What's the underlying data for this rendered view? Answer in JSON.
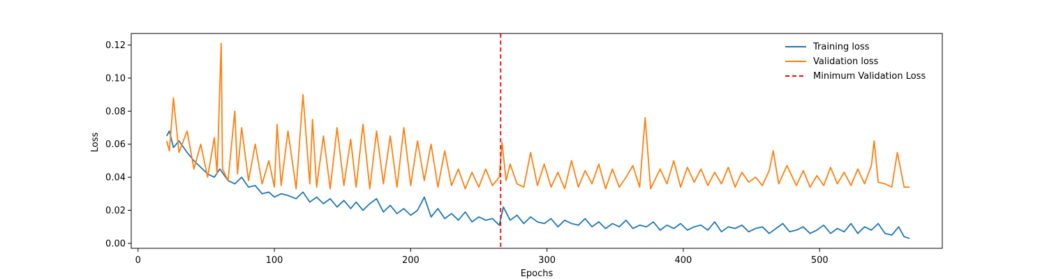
{
  "chart_data": {
    "type": "line",
    "title": "",
    "xlabel": "Epochs",
    "ylabel": "Loss",
    "xlim": [
      -5,
      590
    ],
    "ylim": [
      -0.003,
      0.127
    ],
    "x_ticks": [
      0,
      100,
      200,
      300,
      400,
      500
    ],
    "y_ticks": [
      0.0,
      0.02,
      0.04,
      0.06,
      0.08,
      0.1,
      0.12
    ],
    "x_tick_labels": [
      "0",
      "100",
      "200",
      "300",
      "400",
      "500"
    ],
    "y_tick_labels": [
      "0.00",
      "0.02",
      "0.04",
      "0.06",
      "0.08",
      "0.10",
      "0.12"
    ],
    "grid": false,
    "legend_position": "top-right",
    "legend": [
      "Training loss",
      "Validation loss",
      "Minimum Validation Loss"
    ],
    "series": [
      {
        "name": "Training loss",
        "color": "#1f77b4",
        "x": [
          21,
          23,
          26,
          30,
          36,
          41,
          46,
          51,
          56,
          60,
          66,
          71,
          76,
          81,
          86,
          91,
          96,
          100,
          105,
          110,
          116,
          121,
          126,
          131,
          136,
          141,
          146,
          151,
          156,
          160,
          165,
          170,
          175,
          180,
          185,
          190,
          195,
          200,
          205,
          210,
          215,
          220,
          225,
          230,
          235,
          240,
          245,
          250,
          255,
          260,
          265,
          268,
          273,
          278,
          283,
          288,
          293,
          298,
          303,
          308,
          313,
          318,
          323,
          328,
          333,
          338,
          343,
          348,
          353,
          358,
          363,
          368,
          373,
          378,
          383,
          388,
          393,
          398,
          403,
          408,
          413,
          418,
          423,
          428,
          433,
          438,
          443,
          448,
          453,
          458,
          463,
          468,
          473,
          478,
          483,
          488,
          493,
          498,
          503,
          508,
          513,
          518,
          523,
          528,
          533,
          538,
          543,
          548,
          553,
          558,
          562,
          566
        ],
        "y": [
          0.065,
          0.068,
          0.058,
          0.062,
          0.055,
          0.05,
          0.046,
          0.042,
          0.04,
          0.045,
          0.038,
          0.036,
          0.04,
          0.034,
          0.035,
          0.03,
          0.031,
          0.028,
          0.03,
          0.029,
          0.027,
          0.031,
          0.025,
          0.028,
          0.024,
          0.027,
          0.022,
          0.026,
          0.021,
          0.025,
          0.02,
          0.024,
          0.027,
          0.019,
          0.023,
          0.018,
          0.021,
          0.017,
          0.02,
          0.028,
          0.016,
          0.021,
          0.015,
          0.018,
          0.014,
          0.019,
          0.013,
          0.016,
          0.014,
          0.015,
          0.011,
          0.022,
          0.014,
          0.017,
          0.012,
          0.016,
          0.013,
          0.012,
          0.015,
          0.01,
          0.014,
          0.012,
          0.011,
          0.015,
          0.01,
          0.013,
          0.009,
          0.012,
          0.01,
          0.014,
          0.009,
          0.011,
          0.01,
          0.013,
          0.008,
          0.011,
          0.009,
          0.012,
          0.008,
          0.01,
          0.011,
          0.008,
          0.013,
          0.007,
          0.01,
          0.009,
          0.011,
          0.007,
          0.009,
          0.01,
          0.006,
          0.009,
          0.012,
          0.007,
          0.008,
          0.01,
          0.006,
          0.008,
          0.011,
          0.006,
          0.009,
          0.007,
          0.012,
          0.006,
          0.01,
          0.008,
          0.012,
          0.006,
          0.005,
          0.01,
          0.004,
          0.003
        ]
      },
      {
        "name": "Validation loss",
        "color": "#ff7f0e",
        "x": [
          21,
          23,
          26,
          30,
          36,
          41,
          46,
          51,
          56,
          58,
          61,
          62,
          66,
          71,
          73,
          76,
          81,
          86,
          91,
          96,
          100,
          102,
          105,
          110,
          116,
          121,
          126,
          128,
          131,
          136,
          141,
          146,
          151,
          156,
          160,
          165,
          170,
          175,
          180,
          185,
          190,
          195,
          200,
          205,
          210,
          215,
          220,
          225,
          230,
          235,
          240,
          245,
          250,
          255,
          260,
          265,
          267,
          270,
          273,
          278,
          283,
          288,
          293,
          298,
          303,
          308,
          313,
          318,
          323,
          328,
          333,
          338,
          343,
          348,
          353,
          358,
          363,
          368,
          372,
          376,
          383,
          388,
          393,
          398,
          403,
          408,
          413,
          418,
          423,
          428,
          433,
          438,
          443,
          448,
          453,
          458,
          463,
          466,
          470,
          476,
          483,
          488,
          493,
          498,
          503,
          508,
          513,
          518,
          523,
          528,
          533,
          538,
          540,
          543,
          548,
          553,
          557,
          562,
          566
        ],
        "y": [
          0.062,
          0.056,
          0.088,
          0.055,
          0.068,
          0.045,
          0.06,
          0.04,
          0.064,
          0.042,
          0.121,
          0.045,
          0.038,
          0.08,
          0.042,
          0.07,
          0.038,
          0.06,
          0.036,
          0.05,
          0.034,
          0.072,
          0.035,
          0.068,
          0.033,
          0.09,
          0.036,
          0.075,
          0.034,
          0.065,
          0.033,
          0.07,
          0.035,
          0.063,
          0.034,
          0.072,
          0.033,
          0.068,
          0.036,
          0.065,
          0.034,
          0.07,
          0.035,
          0.062,
          0.038,
          0.06,
          0.034,
          0.056,
          0.035,
          0.045,
          0.033,
          0.043,
          0.034,
          0.045,
          0.035,
          0.04,
          0.061,
          0.038,
          0.048,
          0.036,
          0.034,
          0.055,
          0.035,
          0.048,
          0.034,
          0.043,
          0.033,
          0.05,
          0.034,
          0.044,
          0.036,
          0.048,
          0.033,
          0.045,
          0.034,
          0.04,
          0.047,
          0.034,
          0.076,
          0.033,
          0.045,
          0.036,
          0.05,
          0.034,
          0.046,
          0.037,
          0.045,
          0.035,
          0.043,
          0.036,
          0.046,
          0.034,
          0.043,
          0.037,
          0.04,
          0.035,
          0.044,
          0.056,
          0.036,
          0.047,
          0.035,
          0.044,
          0.034,
          0.041,
          0.035,
          0.046,
          0.036,
          0.043,
          0.035,
          0.045,
          0.036,
          0.047,
          0.062,
          0.037,
          0.036,
          0.034,
          0.055,
          0.034,
          0.034
        ]
      }
    ],
    "vline": {
      "name": "Minimum Validation Loss",
      "x": 266,
      "color": "#ff0000",
      "style": "dashed"
    }
  }
}
